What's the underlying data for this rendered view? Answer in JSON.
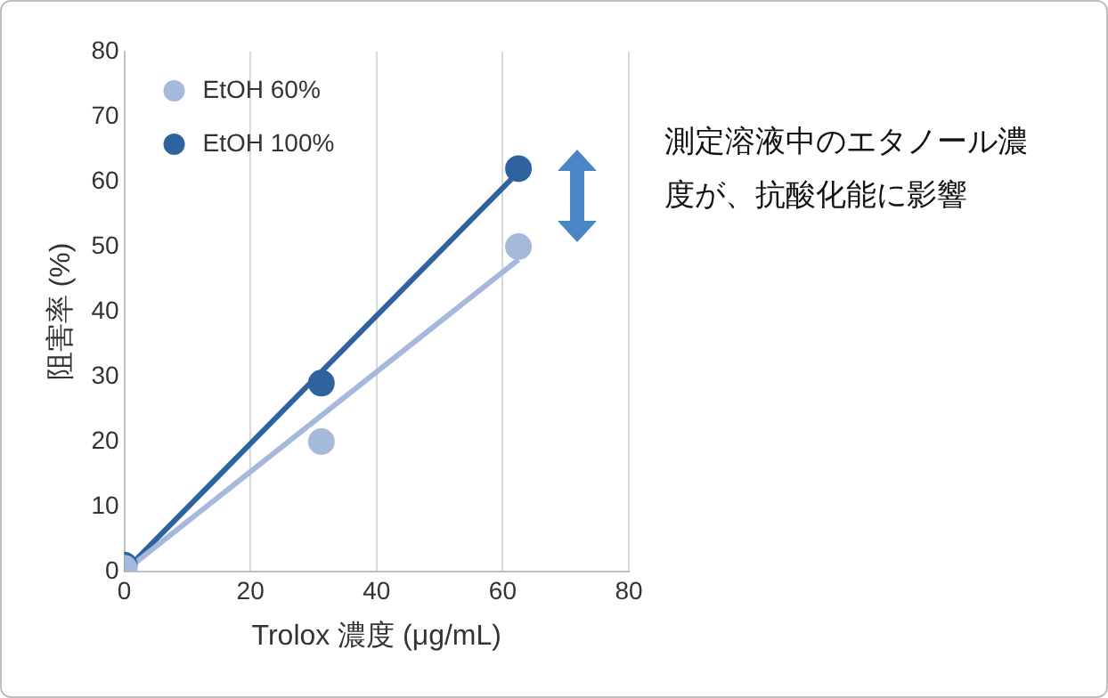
{
  "chart_data": {
    "type": "scatter",
    "xlabel": "Trolox 濃度 (μg/mL)",
    "ylabel": "阻害率 (%)",
    "xlim": [
      0,
      80
    ],
    "ylim": [
      0,
      80
    ],
    "xticks": [
      0,
      20,
      40,
      60,
      80
    ],
    "yticks": [
      0,
      10,
      20,
      30,
      40,
      50,
      60,
      70,
      80
    ],
    "grid": "x",
    "legend": "top left",
    "marker": "circle",
    "annotations": [
      "測定溶液中のエタノール濃度が、抗酸化能に影響"
    ],
    "series": [
      {
        "name": "EtOH 60%",
        "color": "#a5b9dc",
        "x": [
          0,
          31.25,
          62.5
        ],
        "values": [
          0.5,
          20,
          50
        ]
      },
      {
        "name": "EtOH 100%",
        "color": "#2e63a0",
        "x": [
          0,
          31.25,
          62.5
        ],
        "values": [
          1,
          29,
          62
        ]
      },
      {
        "type": "line",
        "color": "#a5b9dc",
        "x": [
          0,
          62.5
        ],
        "values": [
          0,
          48
        ],
        "marker": "none"
      },
      {
        "type": "line",
        "color": "#2e63a0",
        "x": [
          0,
          62.5
        ],
        "values": [
          0,
          61.5
        ],
        "marker": "none"
      }
    ]
  }
}
